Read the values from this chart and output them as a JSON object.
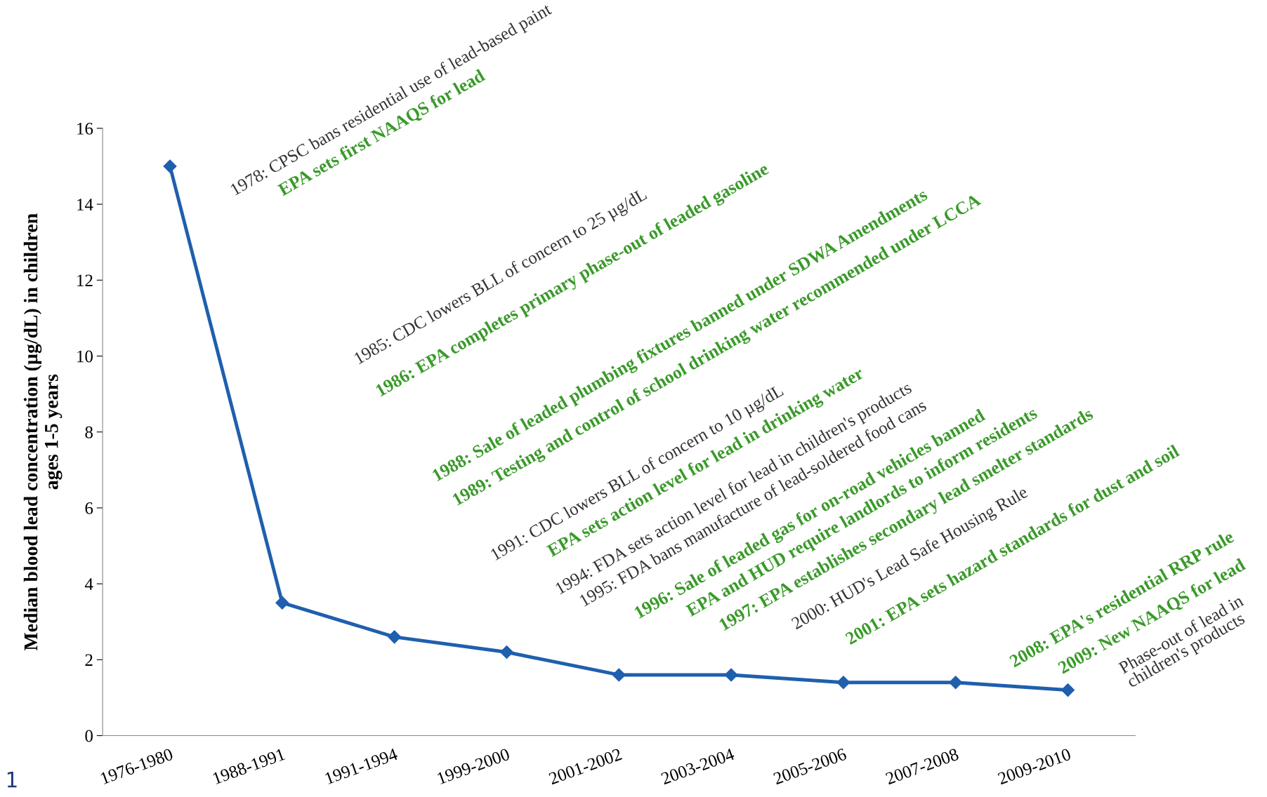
{
  "chart_data": {
    "type": "line",
    "ylabel": "Median blood lead concentration (µg/dL) in children\nages 1-5 years",
    "categories": [
      "1976-1980",
      "1988-1991",
      "1991-1994",
      "1999-2000",
      "2001-2002",
      "2003-2004",
      "2005-2006",
      "2007-2008",
      "2009-2010"
    ],
    "series": [
      {
        "color": "#1f5fad",
        "values": [
          15,
          3.5,
          2.6,
          2.2,
          1.6,
          1.6,
          1.4,
          1.4,
          1.2
        ]
      }
    ],
    "marker": "diamond",
    "line_style": "solid",
    "grid": false,
    "legend": false,
    "ylim": [
      0,
      16
    ],
    "yticks": [
      0,
      2,
      4,
      6,
      8,
      10,
      12,
      14,
      16
    ],
    "annotations": [
      "1978: CPSC bans residential use of lead-based paint",
      "EPA sets first NAAQS for lead",
      "1985: CDC lowers BLL of concern to 25 µg/dL",
      "1986: EPA completes primary phase-out of leaded gasoline",
      "1988: Sale of leaded plumbing fixtures banned under SDWA Amendments",
      "1989: Testing and control of school drinking water recommended under LCCA",
      "1991: CDC lowers BLL of concern to 10 µg/dL",
      "EPA sets action level for lead in drinking water",
      "1994: FDA sets action level for lead in children's products",
      "1995: FDA bans manufacture of lead-soldered food cans",
      "1996: Sale of leaded gas for on-road vehicles banned",
      "EPA and HUD require landlords to inform residents",
      "1997: EPA establishes secondary lead smelter standards",
      "2000: HUD's Lead Safe Housing Rule",
      "2001: EPA sets hazard standards for dust and soil",
      "2008: EPA's residential RRP rule",
      "2009: New NAAQS for lead",
      "Phase-out of lead in\nchildren's products",
      "1"
    ]
  }
}
